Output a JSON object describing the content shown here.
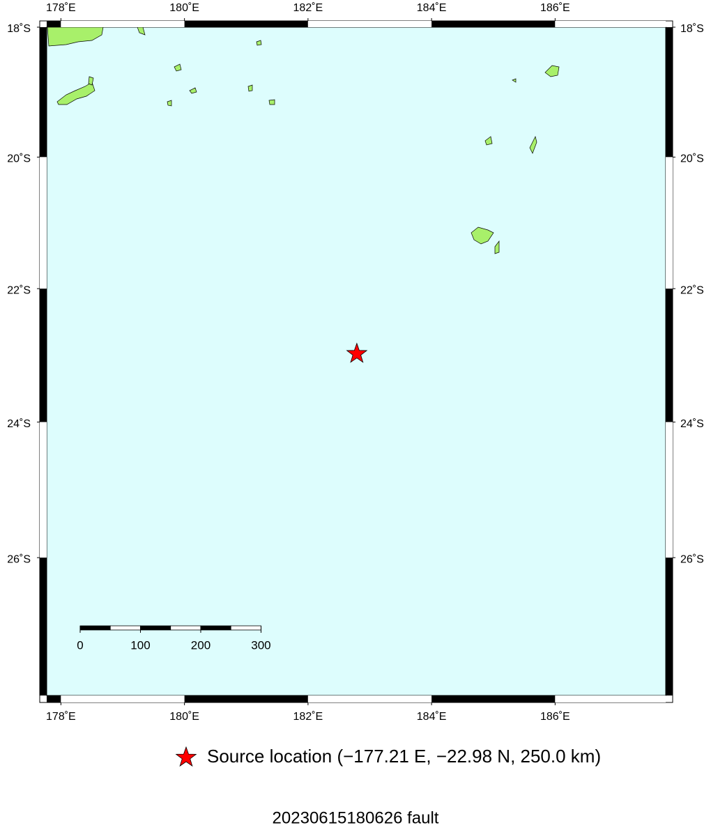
{
  "map": {
    "xlim": [
      177.77,
      187.79
    ],
    "ylim": [
      -28,
      -18
    ],
    "xticks": [
      {
        "value": 178,
        "label": "178˚E"
      },
      {
        "value": 180,
        "label": "180˚E"
      },
      {
        "value": 182,
        "label": "182˚E"
      },
      {
        "value": 184,
        "label": "184˚E"
      },
      {
        "value": 186,
        "label": "186˚E"
      }
    ],
    "yticks": [
      {
        "value": -18,
        "label": "18˚S"
      },
      {
        "value": -20,
        "label": "20˚S"
      },
      {
        "value": -22,
        "label": "22˚S"
      },
      {
        "value": -24,
        "label": "24˚S"
      },
      {
        "value": -26,
        "label": "26˚S"
      }
    ],
    "scale_bar": {
      "ticks": [
        0,
        100,
        200,
        300
      ]
    },
    "source": {
      "lon": -177.21,
      "lat": -22.98,
      "color": "#ff0000"
    },
    "legend": {
      "label": "Source location (−177.21 E, −22.98 N, 250.0 km)"
    },
    "title": "20230615180626 fault"
  }
}
